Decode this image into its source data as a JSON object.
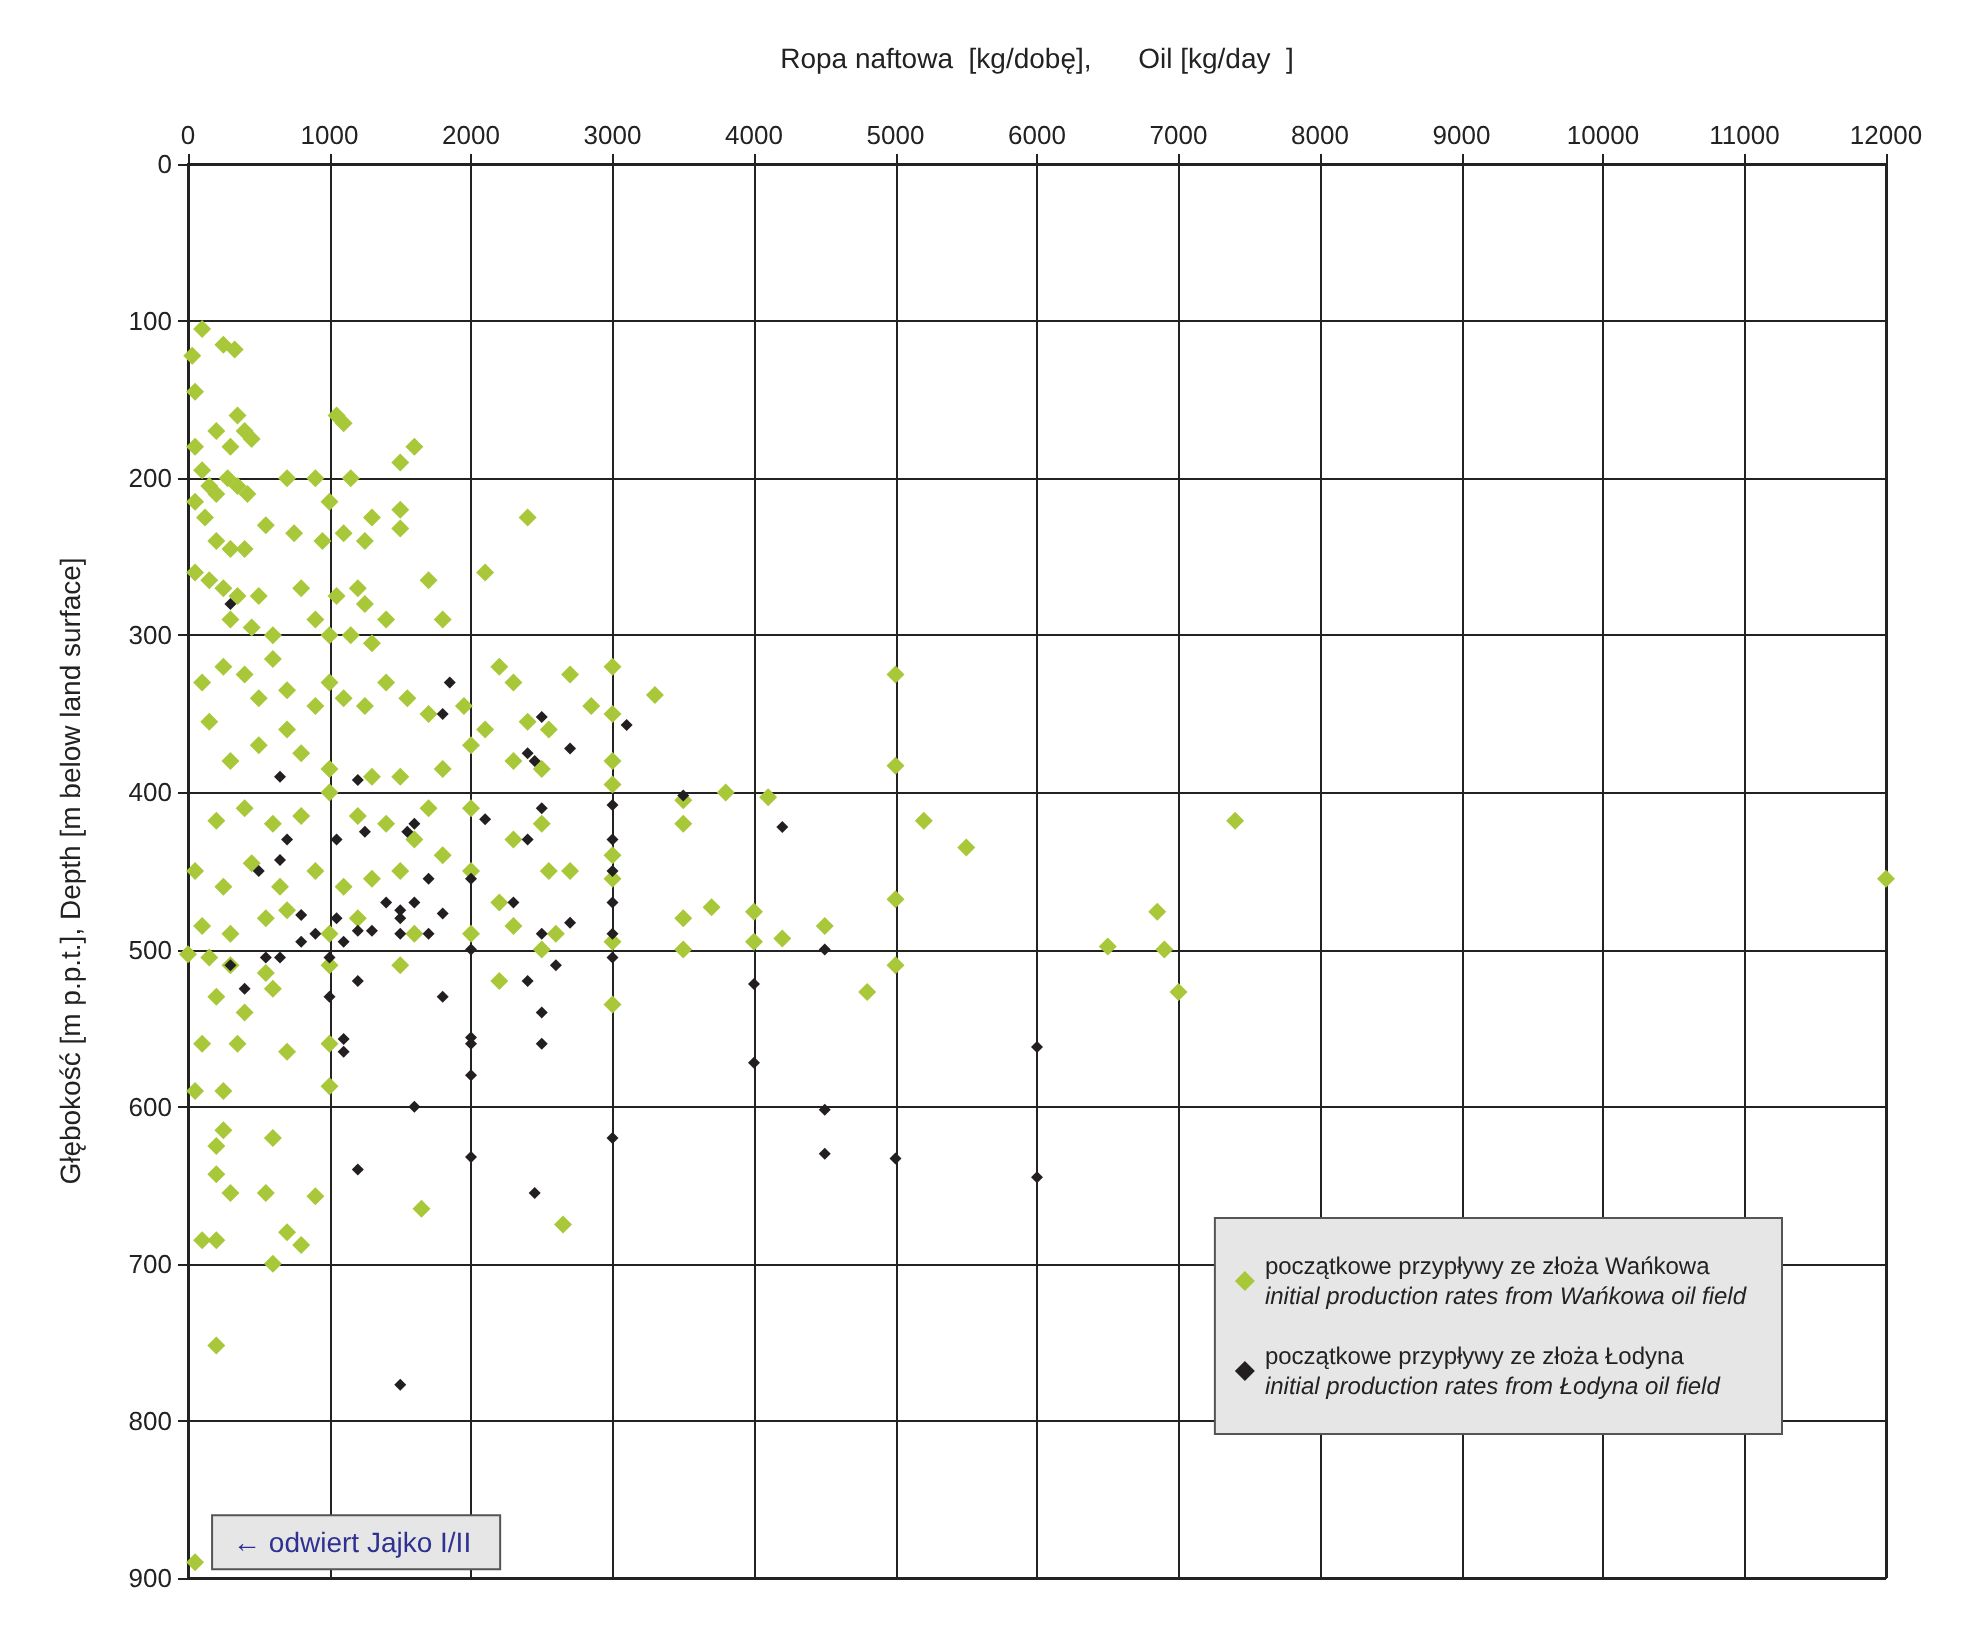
{
  "chart_data": {
    "type": "scatter",
    "xlabel": "Ropa naftowa  [kg/dobę],      Oil [kg/day  ]",
    "ylabel": "Głębokość [m p.p.t.], Depth [m below land surface]",
    "xlim": [
      0,
      12000
    ],
    "xticks": [
      0,
      1000,
      2000,
      3000,
      4000,
      5000,
      6000,
      7000,
      8000,
      9000,
      10000,
      11000,
      12000
    ],
    "ylim": [
      900,
      0
    ],
    "yticks": [
      0,
      100,
      200,
      300,
      400,
      500,
      600,
      700,
      800,
      900
    ],
    "grid": true,
    "legend": "bottom right",
    "marker": "diamond",
    "annotations": [
      {
        "text": "← odwiert Jajko I/II",
        "x": 50,
        "y": 890
      }
    ],
    "series": [
      {
        "name": "początkowe przypływy ze złoża Wańkowa\ninitial production rates from Wańkowa oil field",
        "color": "#a8c83a",
        "x": [
          100,
          30,
          250,
          330,
          50,
          200,
          350,
          400,
          450,
          300,
          1050,
          1100,
          1600,
          1500,
          50,
          100,
          150,
          200,
          280,
          350,
          420,
          700,
          900,
          1150,
          1000,
          1300,
          1500,
          1500,
          2400,
          50,
          120,
          200,
          300,
          400,
          550,
          750,
          950,
          1100,
          1250,
          1700,
          2100,
          50,
          150,
          250,
          350,
          500,
          800,
          1050,
          1200,
          1250,
          1400,
          1800,
          300,
          450,
          600,
          900,
          1000,
          1150,
          1300,
          600,
          100,
          250,
          400,
          500,
          700,
          900,
          1000,
          1100,
          1250,
          1400,
          1700,
          2200,
          2300,
          2700,
          2850,
          3000,
          3300,
          1550,
          1950,
          2100,
          2400,
          2550,
          3000,
          150,
          300,
          500,
          700,
          800,
          1000,
          1300,
          1500,
          1800,
          2000,
          2300,
          2500,
          3000,
          3000,
          3800,
          3500,
          4100,
          3700,
          200,
          400,
          600,
          800,
          1000,
          1200,
          1400,
          1600,
          1700,
          2000,
          2300,
          2500,
          2700,
          3000,
          3500,
          5200,
          7400,
          5500,
          5000,
          5000,
          5000,
          50,
          250,
          450,
          650,
          900,
          1100,
          1300,
          1500,
          1800,
          2000,
          2200,
          2550,
          3000,
          12000,
          100,
          300,
          550,
          700,
          1000,
          1200,
          1600,
          2000,
          2300,
          2600,
          3000,
          3500,
          4000,
          4000,
          4200,
          4500,
          3500,
          6500,
          6850,
          6900,
          7000,
          4800,
          5000,
          0,
          150,
          300,
          550,
          1000,
          1500,
          2200,
          2500,
          3000,
          200,
          400,
          600,
          100,
          350,
          700,
          1000,
          1000,
          50,
          250,
          200,
          250,
          600,
          300,
          550,
          900,
          1650,
          2650,
          200,
          100,
          200,
          700,
          800,
          600,
          200,
          50
        ],
        "values": [
          105,
          122,
          115,
          118,
          145,
          170,
          160,
          170,
          175,
          180,
          160,
          165,
          180,
          190,
          180,
          195,
          205,
          210,
          200,
          205,
          210,
          200,
          200,
          200,
          215,
          225,
          220,
          232,
          225,
          215,
          225,
          240,
          245,
          245,
          230,
          235,
          240,
          235,
          240,
          265,
          260,
          260,
          265,
          270,
          275,
          275,
          270,
          275,
          270,
          280,
          290,
          290,
          290,
          295,
          300,
          290,
          300,
          300,
          305,
          315,
          330,
          320,
          325,
          340,
          335,
          345,
          330,
          340,
          345,
          330,
          350,
          320,
          330,
          325,
          345,
          320,
          338,
          340,
          345,
          360,
          355,
          360,
          350,
          355,
          380,
          370,
          360,
          375,
          385,
          390,
          390,
          385,
          370,
          380,
          385,
          380,
          395,
          400,
          405,
          403,
          473,
          418,
          410,
          420,
          415,
          400,
          415,
          420,
          430,
          410,
          410,
          430,
          420,
          450,
          440,
          420,
          418,
          418,
          435,
          383,
          325,
          468,
          450,
          460,
          445,
          460,
          450,
          460,
          455,
          450,
          440,
          450,
          470,
          450,
          455,
          455,
          485,
          490,
          480,
          475,
          490,
          480,
          490,
          490,
          485,
          490,
          495,
          480,
          476,
          495,
          493,
          485,
          500,
          498,
          476,
          500,
          527,
          527,
          510,
          503,
          505,
          510,
          515,
          510,
          510,
          520,
          500,
          535,
          530,
          540,
          525,
          560,
          560,
          565,
          560,
          587,
          590,
          590,
          625,
          615,
          620,
          655,
          655,
          657,
          665,
          675,
          643,
          685,
          685,
          680,
          688,
          700,
          752,
          890
        ]
      },
      {
        "name": "początkowe przypływy ze złoża Łodyna\ninitial production rates from Łodyna oil field",
        "color": "#231f20",
        "x": [
          1500,
          1200,
          1600,
          2000,
          2000,
          2000,
          2000,
          1100,
          1100,
          1000,
          2400,
          2500,
          2500,
          2450,
          3000,
          4000,
          4000,
          4500,
          4500,
          5000,
          6000,
          6000,
          4500,
          4200,
          3500,
          3000,
          3000,
          3000,
          3000,
          3000,
          3000,
          3100,
          2500,
          2450,
          2500,
          2700,
          2400,
          2300,
          2500,
          2600,
          2700,
          2000,
          2000,
          1800,
          1800,
          1700,
          1700,
          1600,
          1500,
          1500,
          1500,
          1400,
          1300,
          1200,
          1200,
          1100,
          1050,
          900,
          800,
          800,
          700,
          650,
          650,
          500,
          550,
          400,
          300,
          300,
          1200,
          1250,
          1550,
          1600,
          1800,
          1850,
          2100,
          2400,
          1000,
          650,
          1050
        ],
        "values": [
          777,
          640,
          600,
          632,
          580,
          556,
          560,
          557,
          565,
          530,
          520,
          540,
          560,
          655,
          620,
          572,
          522,
          602,
          630,
          633,
          562,
          645,
          500,
          422,
          402,
          408,
          430,
          450,
          470,
          490,
          505,
          357,
          352,
          380,
          410,
          372,
          430,
          470,
          490,
          510,
          483,
          455,
          500,
          477,
          530,
          455,
          490,
          470,
          475,
          480,
          490,
          470,
          488,
          488,
          520,
          495,
          480,
          490,
          478,
          495,
          430,
          443,
          390,
          450,
          505,
          525,
          510,
          280,
          392,
          425,
          425,
          420,
          350,
          330,
          417,
          375,
          505,
          505,
          430
        ]
      }
    ]
  }
}
